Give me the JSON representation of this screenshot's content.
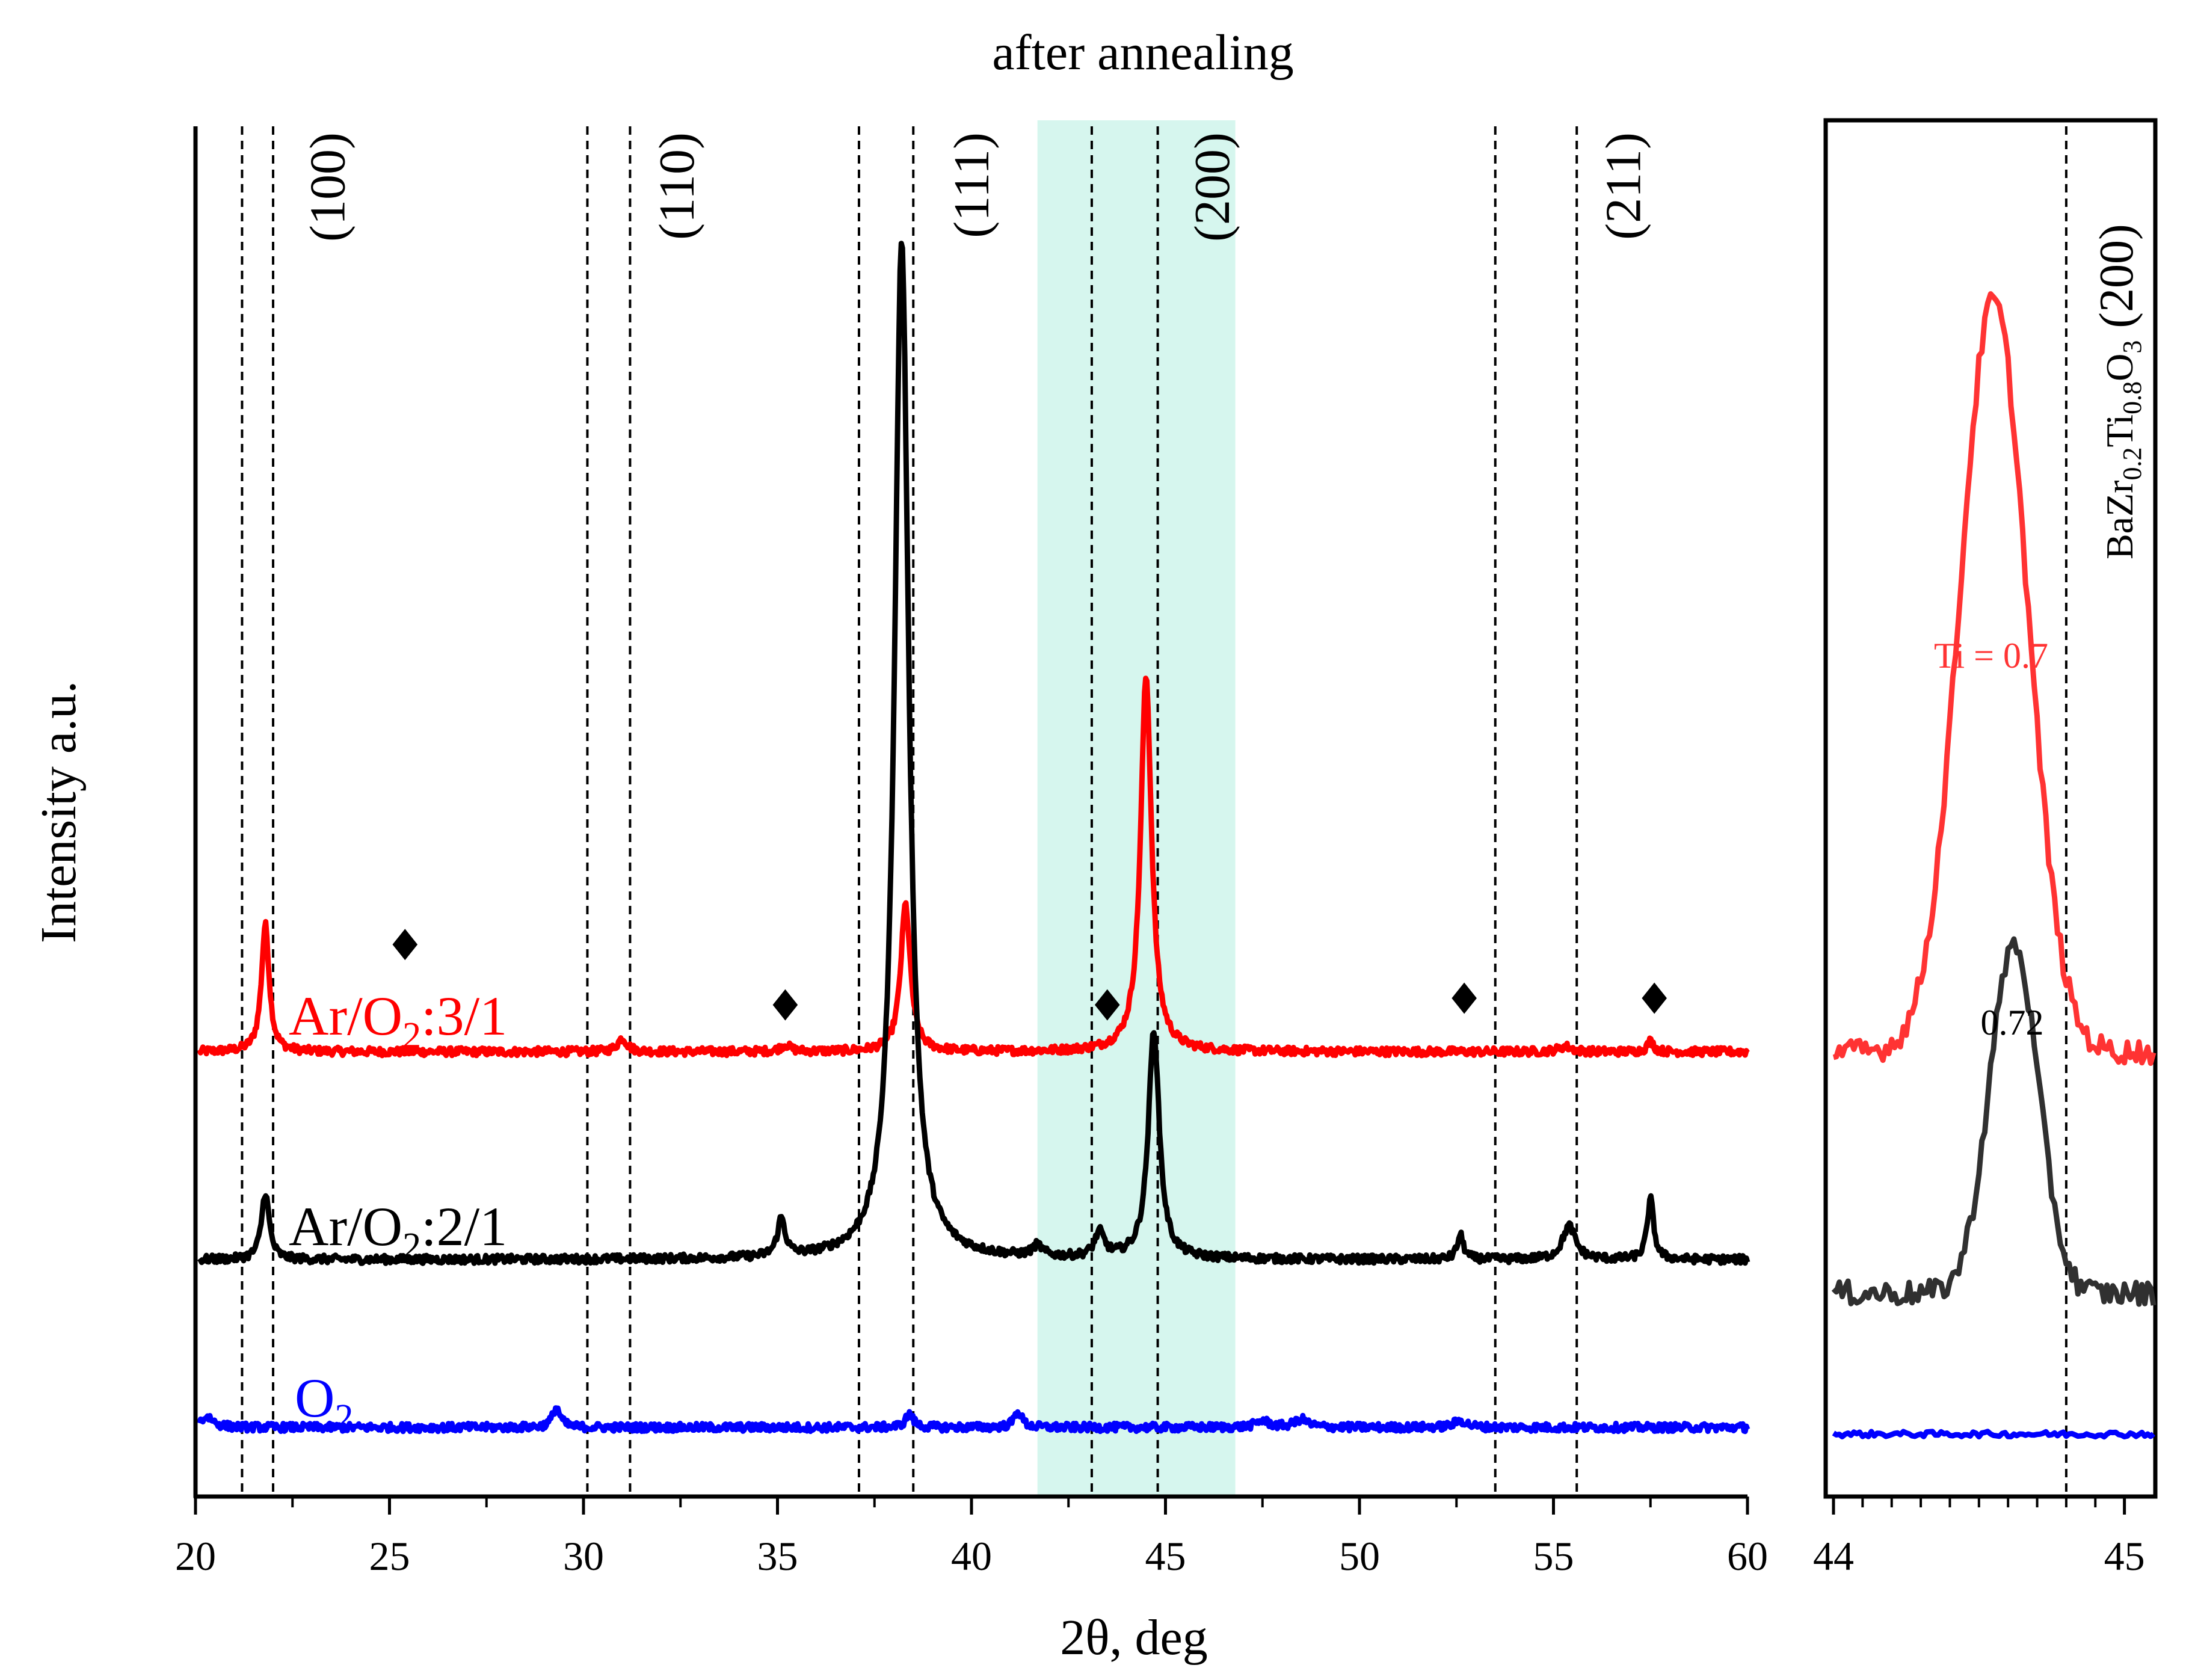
{
  "title": "after annealing",
  "colors": {
    "red": "#ff0000",
    "black": "#000000",
    "blue": "#0000ff",
    "highlight": "#d6f6ee",
    "zoom_red": "#ff3333",
    "zoom_black": "#303030"
  },
  "chart_data": [
    {
      "type": "line",
      "xlabel": "2θ, deg",
      "ylabel": "Intensity a.u.",
      "xlim": [
        20,
        60
      ],
      "ylim": [
        0,
        10
      ],
      "xticks": [
        "20",
        "25",
        "30",
        "35",
        "40",
        "45",
        "50",
        "55",
        "60"
      ],
      "highlight_range": [
        41.7,
        46.8
      ],
      "reference_lines": [
        21.2,
        22.0,
        30.1,
        31.2,
        37.1,
        38.5,
        43.1,
        44.8,
        53.5,
        55.6
      ],
      "peak_labels": [
        {
          "text": "(100)",
          "x": 23.4
        },
        {
          "text": "(110)",
          "x": 32.4
        },
        {
          "text": "(111)",
          "x": 40.0
        },
        {
          "text": "(200)",
          "x": 46.2
        },
        {
          "text": "(211)",
          "x": 56.8
        }
      ],
      "diamond_markers": [
        {
          "x": 25.4,
          "y": 3.9
        },
        {
          "x": 35.2,
          "y": 3.45
        },
        {
          "x": 43.5,
          "y": 3.45
        },
        {
          "x": 52.7,
          "y": 3.5
        },
        {
          "x": 57.6,
          "y": 3.5
        }
      ],
      "series": [
        {
          "name": "Ar/O2:3/1",
          "color": "#ff0000",
          "baseline": 3.1,
          "peaks": [
            {
              "x": 21.8,
              "height": 0.95,
              "width": 0.12
            },
            {
              "x": 31.0,
              "height": 0.1,
              "width": 0.15
            },
            {
              "x": 35.2,
              "height": 0.05,
              "width": 0.15
            },
            {
              "x": 38.3,
              "height": 1.1,
              "width": 0.15
            },
            {
              "x": 44.5,
              "height": 2.8,
              "width": 0.17
            },
            {
              "x": 55.3,
              "height": 0.04,
              "width": 0.2
            },
            {
              "x": 57.5,
              "height": 0.08,
              "width": 0.1
            }
          ]
        },
        {
          "name": "Ar/O2:2/1",
          "color": "#000000",
          "baseline": 1.55,
          "peaks": [
            {
              "x": 21.8,
              "height": 0.5,
              "width": 0.12
            },
            {
              "x": 35.1,
              "height": 0.28,
              "width": 0.12
            },
            {
              "x": 38.2,
              "height": 7.6,
              "width": 0.22
            },
            {
              "x": 41.7,
              "height": 0.08,
              "width": 0.15
            },
            {
              "x": 43.3,
              "height": 0.18,
              "width": 0.15
            },
            {
              "x": 44.7,
              "height": 1.7,
              "width": 0.17
            },
            {
              "x": 52.6,
              "height": 0.18,
              "width": 0.1
            },
            {
              "x": 55.4,
              "height": 0.25,
              "width": 0.2
            },
            {
              "x": 57.5,
              "height": 0.45,
              "width": 0.1
            }
          ]
        },
        {
          "name": "O2",
          "color": "#0000ff",
          "baseline": 0.3,
          "peaks": [
            {
              "x": 20.3,
              "height": 0.08,
              "width": 0.2
            },
            {
              "x": 29.3,
              "height": 0.15,
              "width": 0.12
            },
            {
              "x": 38.4,
              "height": 0.1,
              "width": 0.12
            },
            {
              "x": 41.2,
              "height": 0.12,
              "width": 0.12
            },
            {
              "x": 47.5,
              "height": 0.05,
              "width": 0.2
            },
            {
              "x": 48.5,
              "height": 0.06,
              "width": 0.2
            },
            {
              "x": 52.6,
              "height": 0.05,
              "width": 0.2
            }
          ]
        }
      ],
      "legend": [
        {
          "prefix": "Ar/O",
          "sub": "2",
          "suffix": ":3/1",
          "color": "#ff0000"
        },
        {
          "prefix": "Ar/O",
          "sub": "2",
          "suffix": ":2/1",
          "color": "#000000"
        },
        {
          "prefix": "O",
          "sub": "2",
          "suffix": "",
          "color": "#0000ff"
        }
      ]
    },
    {
      "type": "line",
      "xlim": [
        44,
        45.1
      ],
      "ylim": [
        0,
        10
      ],
      "xticks": [
        "44",
        "45"
      ],
      "reference_line": 44.8,
      "reference_label": "BaZr0.2Ti0.8O3 (200)",
      "series": [
        {
          "name": "Ti = 0.7",
          "color": "#ff3333",
          "baseline": 3.1,
          "peak_x": 44.55,
          "height": 5.6,
          "width": 0.18
        },
        {
          "name": "0.72",
          "color": "#303030",
          "baseline": 1.3,
          "peak_x": 44.62,
          "height": 2.6,
          "width": 0.13
        },
        {
          "name": "",
          "color": "#0000ff",
          "baseline": 0.25,
          "peak_x": 44.5,
          "height": 0.0,
          "width": 0.2
        }
      ],
      "labels": {
        "ti_07": "Ti = 0.7",
        "ti_072": "0.72"
      }
    }
  ]
}
